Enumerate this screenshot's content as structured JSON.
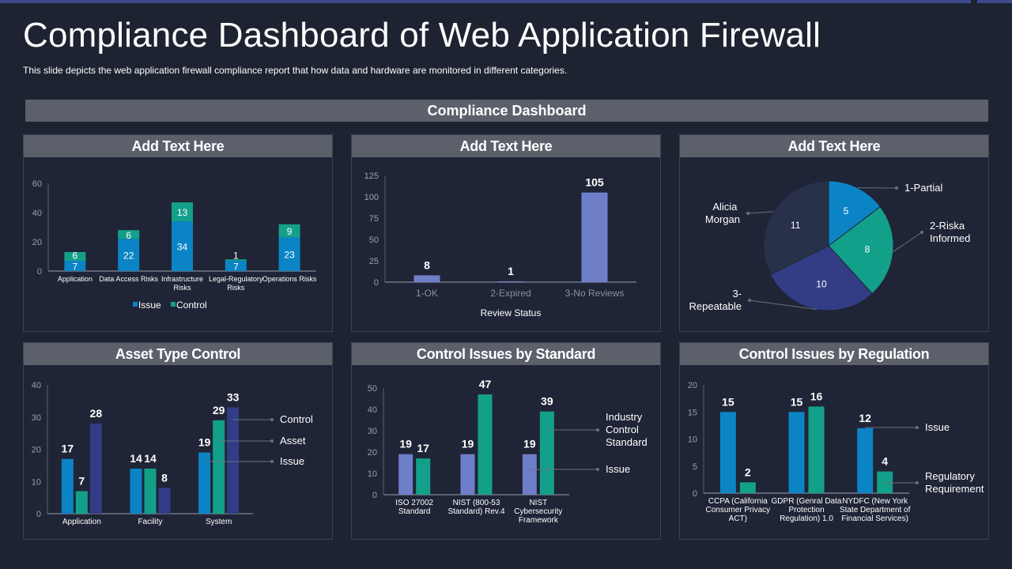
{
  "title": "Compliance Dashboard of Web Application Firewall",
  "subtitle": "This slide depicts the web application firewall  compliance report that how data and hardware  are monitored in different categories.",
  "banner": "Compliance Dashboard",
  "colors": {
    "issue_blue": "#0b84c6",
    "control_teal": "#13a08b",
    "periwinkle": "#6f7ec8",
    "navy": "#323d86",
    "pie_dark": "#283149"
  },
  "panels": [
    {
      "title": "Add Text Here"
    },
    {
      "title": "Add Text Here"
    },
    {
      "title": "Add Text Here"
    },
    {
      "title": "Asset Type Control"
    },
    {
      "title": "Control Issues by Standard"
    },
    {
      "title": "Control Issues by Regulation"
    }
  ],
  "chart_data": [
    {
      "type": "bar",
      "stacked": true,
      "categories": [
        [
          "Application"
        ],
        [
          "Data Access Risks"
        ],
        [
          "Infrastructure",
          "Risks"
        ],
        [
          "Legal-Regulatory",
          "Risks"
        ],
        [
          "Operations Risks"
        ]
      ],
      "ylim": [
        0,
        60
      ],
      "yticks": [
        0,
        20,
        40,
        60
      ],
      "legend": "bottom",
      "series": [
        {
          "name": "Issue",
          "values": [
            7,
            22,
            34,
            7,
            23
          ],
          "color": "#0b84c6"
        },
        {
          "name": "Control",
          "values": [
            6,
            6,
            13,
            1,
            9
          ],
          "color": "#13a08b"
        }
      ]
    },
    {
      "type": "bar",
      "categories": [
        [
          "1-OK"
        ],
        [
          "2-Expired"
        ],
        [
          "3-No Reviews"
        ]
      ],
      "xlabel": "Review  Status",
      "ylim": [
        0,
        125
      ],
      "yticks": [
        0,
        25,
        50,
        75,
        100,
        125
      ],
      "series": [
        {
          "values": [
            8,
            1,
            105
          ],
          "color": "#6f7ec8"
        }
      ]
    },
    {
      "type": "pie",
      "slices": [
        {
          "label": "1-Partial",
          "value": 5,
          "color": "#0b84c6"
        },
        {
          "label": "2-Riska Informed",
          "value": 8,
          "color": "#13a08b"
        },
        {
          "label": "3-Repeatable",
          "value": 10,
          "color": "#323d86"
        },
        {
          "label": "Alicia Morgan",
          "value": 11,
          "color": "#283149"
        }
      ]
    },
    {
      "type": "bar",
      "categories": [
        [
          "Application"
        ],
        [
          "Facility"
        ],
        [
          "System"
        ]
      ],
      "ylim": [
        0,
        40
      ],
      "yticks": [
        0,
        10,
        20,
        30,
        40
      ],
      "legend": "right",
      "series": [
        {
          "name": "Issue",
          "values": [
            17,
            14,
            19
          ],
          "color": "#0b84c6"
        },
        {
          "name": "Asset",
          "values": [
            7,
            14,
            29
          ],
          "color": "#13a08b"
        },
        {
          "name": "Control",
          "values": [
            28,
            8,
            33
          ],
          "color": "#323d86"
        }
      ]
    },
    {
      "type": "bar",
      "categories": [
        [
          "ISO 27002",
          "Standard"
        ],
        [
          "NIST (800-53",
          "Standard) Rev.4"
        ],
        [
          "NIST",
          "Cybersecurity",
          "Framework"
        ]
      ],
      "ylim": [
        0,
        50
      ],
      "yticks": [
        0,
        10,
        20,
        30,
        40,
        50
      ],
      "legend": "right",
      "series": [
        {
          "name": "Issue",
          "values": [
            19,
            19,
            19
          ],
          "color": "#6f7ec8"
        },
        {
          "name": "Industry Control Standard",
          "values": [
            17,
            47,
            39
          ],
          "color": "#13a08b"
        }
      ]
    },
    {
      "type": "bar",
      "categories": [
        [
          "CCPA (California",
          "Consumer Privacy",
          "ACT)"
        ],
        [
          "GDPR (Genral Data",
          "Protection",
          "Regulation) 1.0"
        ],
        [
          "NYDFC (New York",
          "State Department of",
          "Financial Services)"
        ]
      ],
      "ylim": [
        0,
        20
      ],
      "yticks": [
        0,
        5,
        10,
        15,
        20
      ],
      "legend": "right",
      "series": [
        {
          "name": "Issue",
          "values": [
            15,
            15,
            12
          ],
          "color": "#0b84c6"
        },
        {
          "name": "Regulatory Requirement",
          "values": [
            2,
            16,
            4
          ],
          "color": "#13a08b"
        }
      ]
    }
  ]
}
